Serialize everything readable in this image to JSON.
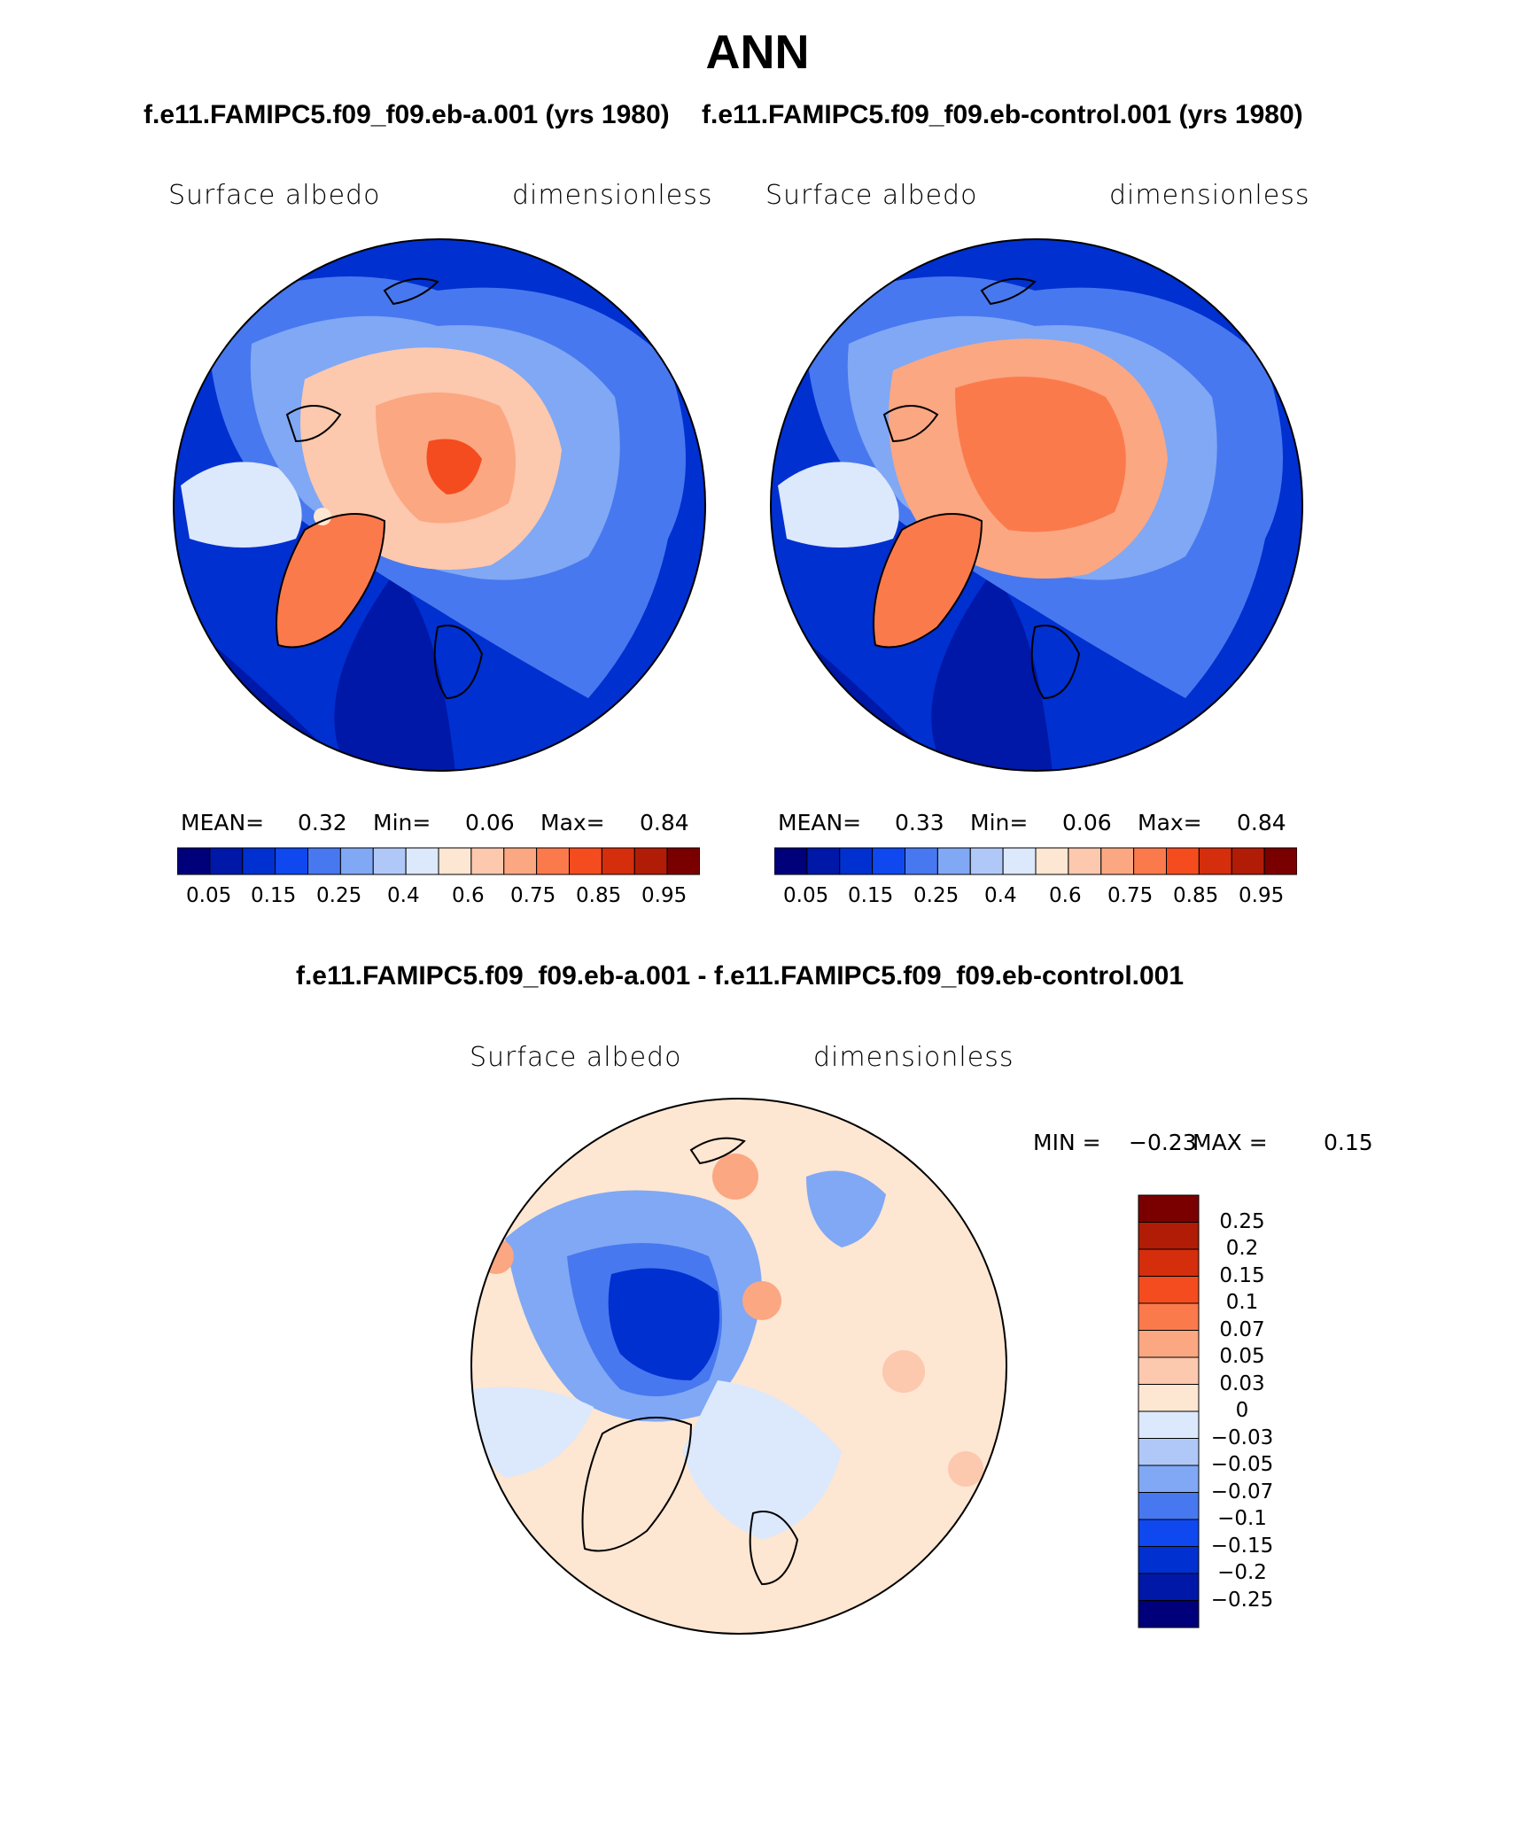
{
  "title": "ANN",
  "panels": [
    {
      "case_title": "f.e11.FAMIPC5.f09_f09.eb-a.001 (yrs 1980)",
      "variable": "Surface albedo",
      "units": "dimensionless",
      "mean_label": "MEAN=",
      "mean": "0.32",
      "min_label": "Min=",
      "min": "0.06",
      "max_label": "Max=",
      "max": "0.84"
    },
    {
      "case_title": "f.e11.FAMIPC5.f09_f09.eb-control.001 (yrs 1980)",
      "variable": "Surface albedo",
      "units": "dimensionless",
      "mean_label": "MEAN=",
      "mean": "0.33",
      "min_label": "Min=",
      "min": "0.06",
      "max_label": "Max=",
      "max": "0.84"
    }
  ],
  "diff": {
    "title": "f.e11.FAMIPC5.f09_f09.eb-a.001 - f.e11.FAMIPC5.f09_f09.eb-control.001",
    "variable": "Surface albedo",
    "units": "dimensionless",
    "min_label": "MIN =",
    "min": "−0.23",
    "max_label": "MAX =",
    "max": "0.15"
  },
  "colorbar": {
    "colors": [
      "#00007a",
      "#0018a8",
      "#0030d0",
      "#1048f0",
      "#4878ef",
      "#80a8f4",
      "#b0c8f8",
      "#dce8fc",
      "#fde6d2",
      "#fcc8ae",
      "#fba782",
      "#fb7a4c",
      "#f44c1e",
      "#d42e0c",
      "#b01c06",
      "#7a0000"
    ],
    "tick_labels": [
      "0.05",
      "0.15",
      "0.25",
      "0.4",
      "0.6",
      "0.75",
      "0.85",
      "0.95"
    ]
  },
  "diff_colorbar": {
    "colors": [
      "#7a0000",
      "#b01c06",
      "#d42e0c",
      "#f44c1e",
      "#fb7a4c",
      "#fba782",
      "#fcc8ae",
      "#fde6d2",
      "#dce8fc",
      "#b0c8f8",
      "#80a8f4",
      "#4878ef",
      "#1048f0",
      "#0030d0",
      "#0018a8",
      "#00007a"
    ],
    "tick_labels": [
      "0.25",
      "0.2",
      "0.15",
      "0.1",
      "0.07",
      "0.05",
      "0.03",
      "0",
      "−0.03",
      "−0.05",
      "−0.07",
      "−0.1",
      "−0.15",
      "−0.2",
      "−0.25"
    ]
  }
}
